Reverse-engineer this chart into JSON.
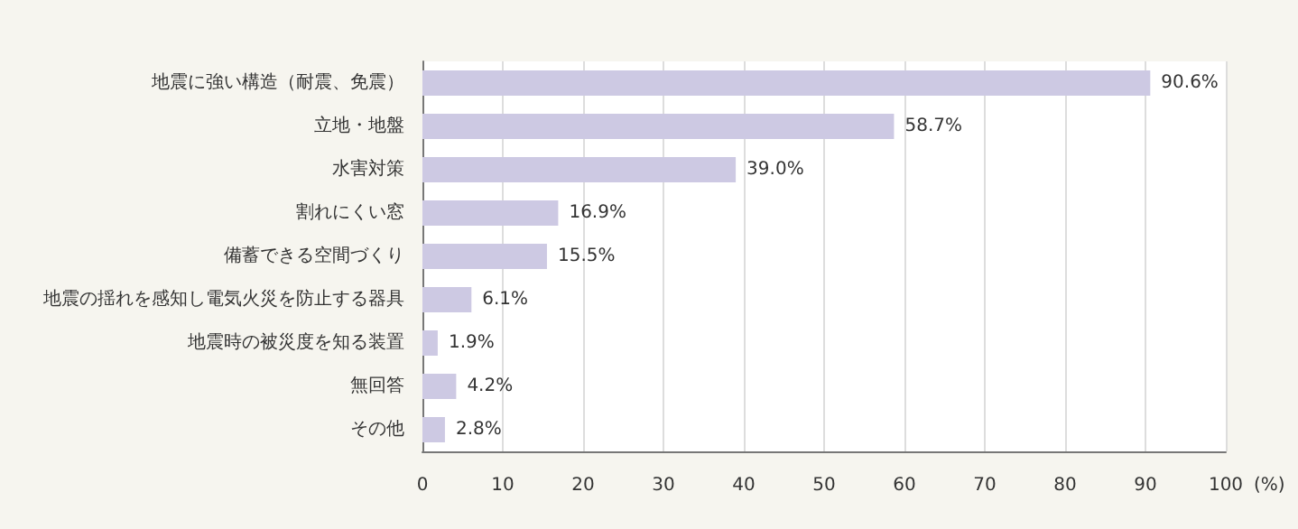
{
  "chart_data": {
    "type": "bar",
    "orientation": "horizontal",
    "xlabel": "(%)",
    "categories": [
      "地震に強い構造（耐震、免震）",
      "立地・地盤",
      "水害対策",
      "割れにくい窓",
      "備蓄できる空間づくり",
      "地震の揺れを感知し電気火災を防止する器具",
      "地震時の被災度を知る装置",
      "無回答",
      "その他"
    ],
    "values": [
      90.6,
      58.7,
      39.0,
      16.9,
      15.5,
      6.1,
      1.9,
      4.2,
      2.8
    ],
    "value_labels": [
      "90.6%",
      "58.7%",
      "39.0%",
      "16.9%",
      "15.5%",
      "6.1%",
      "1.9%",
      "4.2%",
      "2.8%"
    ],
    "color": "#cdc9e3",
    "xlim": [
      0,
      100
    ],
    "xticks": [
      0,
      10,
      20,
      30,
      40,
      50,
      60,
      70,
      80,
      90,
      100
    ],
    "grid": "x"
  }
}
